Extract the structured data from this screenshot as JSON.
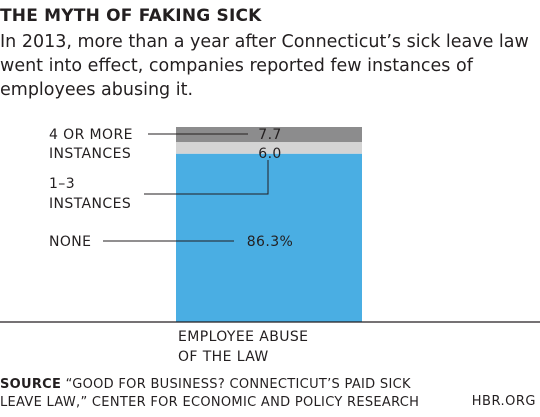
{
  "header": {
    "title": "THE MYTH OF FAKING SICK",
    "subtitle": "In 2013, more than a year after Connecticut’s sick leave law went into effect, companies reported few instances of employees abusing it."
  },
  "chart_data": {
    "type": "bar",
    "stacked": true,
    "categories": [
      "EMPLOYEE ABUSE OF THE LAW"
    ],
    "category_label_lines": [
      "EMPLOYEE ABUSE",
      "OF THE LAW"
    ],
    "series": [
      {
        "name": "NONE",
        "label_lines": [
          "NONE"
        ],
        "values": [
          86.3
        ],
        "data_label": "86.3%",
        "color": "#4aaee3"
      },
      {
        "name": "1–3 INSTANCES",
        "label_lines": [
          "1–3",
          "INSTANCES"
        ],
        "values": [
          6.0
        ],
        "data_label": "6.0",
        "color": "#d4d4d4"
      },
      {
        "name": "4 OR MORE INSTANCES",
        "label_lines": [
          "4 OR MORE",
          "INSTANCES"
        ],
        "values": [
          7.7
        ],
        "data_label": "7.7",
        "color": "#8c8c8d"
      }
    ],
    "ylim": [
      0,
      100
    ],
    "grid": false,
    "axis_line_color": "#231f20",
    "leader_color": "#231f20"
  },
  "footer": {
    "source_label": "SOURCE",
    "source_text": "“GOOD FOR BUSINESS? CONNECTICUT’S PAID SICK LEAVE LAW,” CENTER FOR ECONOMIC AND POLICY RESEARCH",
    "brand": "HBR.ORG"
  }
}
